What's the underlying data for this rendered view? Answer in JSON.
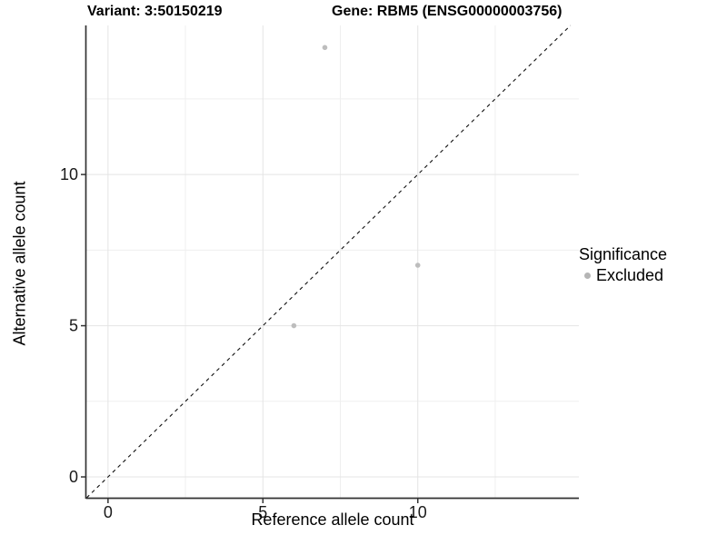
{
  "figure": {
    "title_left": "Variant: 3:50150219",
    "title_right": "Gene: RBM5 (ENSG00000003756)"
  },
  "chart_data": {
    "type": "scatter",
    "title": "Variant: 3:50150219   Gene: RBM5 (ENSG00000003756)",
    "xlabel": "Reference allele count",
    "ylabel": "Alternative allele count",
    "xlim": [
      -0.7,
      15.2
    ],
    "ylim": [
      -0.69,
      14.93
    ],
    "x_major_ticks": [
      0,
      5,
      10
    ],
    "y_major_ticks": [
      0,
      5,
      10
    ],
    "x_minor_ticks": [
      2.5,
      7.5,
      12.5
    ],
    "y_minor_ticks": [
      2.5,
      7.5,
      12.5
    ],
    "grid": true,
    "series": [
      {
        "name": "Excluded",
        "color": "#bdbdbd",
        "points": [
          {
            "x": 7,
            "y": 14.2
          },
          {
            "x": 10,
            "y": 7
          },
          {
            "x": 6,
            "y": 5
          }
        ]
      }
    ],
    "reference_line": {
      "type": "identity",
      "style": "dashed",
      "color": "#111111"
    },
    "legend": {
      "title": "Significance",
      "position": "right",
      "items": [
        {
          "label": "Excluded",
          "color": "#b5b5b5"
        }
      ]
    }
  },
  "colors": {
    "background": "#ffffff",
    "grid_major": "#e4e4e4",
    "grid_minor": "#efefef",
    "axis_line": "#333333",
    "tick_text": "#1a1a1a",
    "point_fill": "#bdbdbd"
  }
}
